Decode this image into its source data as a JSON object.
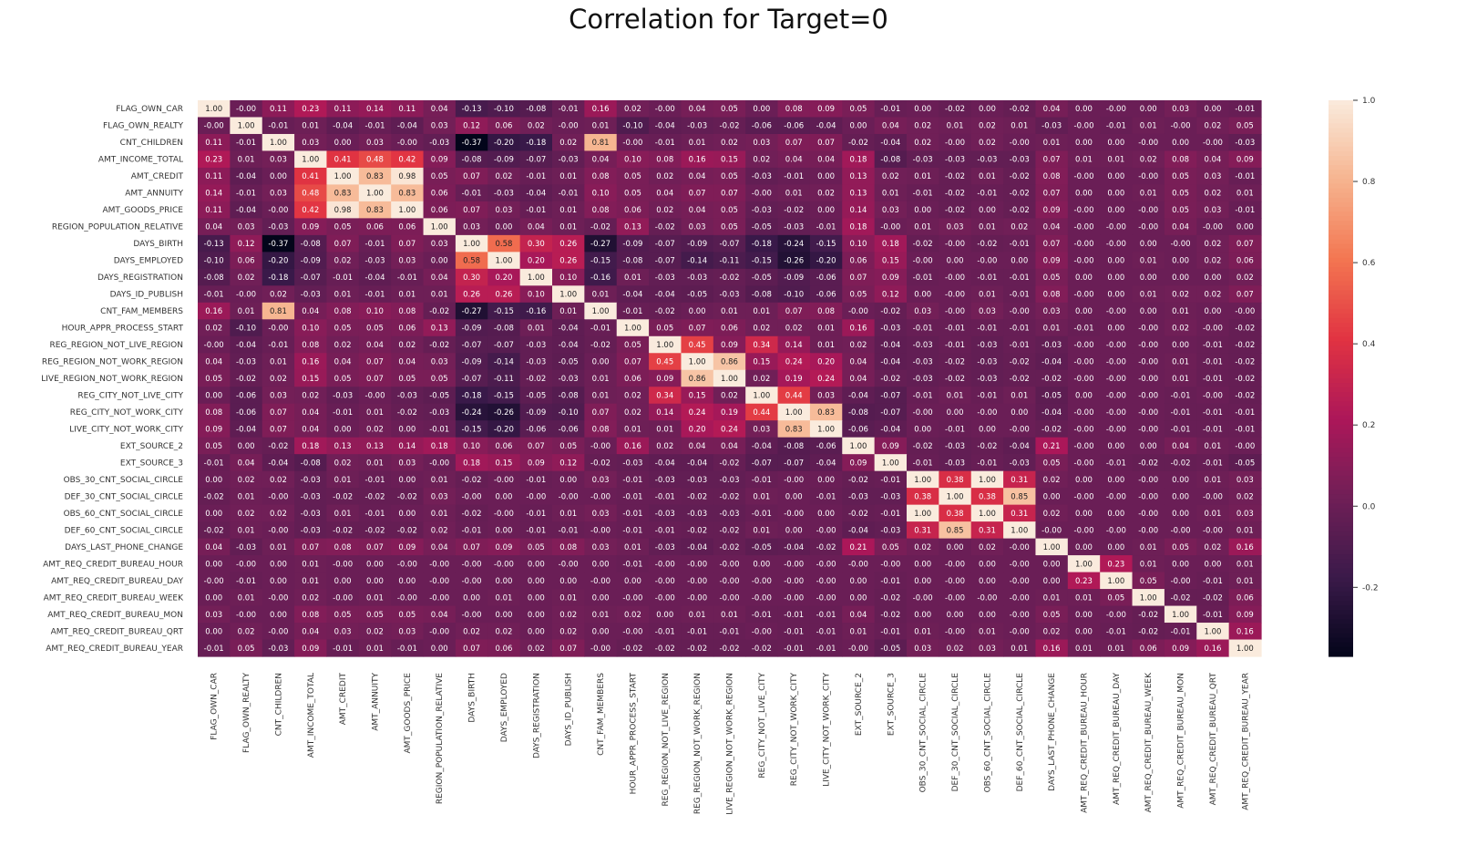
{
  "chart_data": {
    "type": "heatmap",
    "title": "Correlation for Target=0",
    "labels": [
      "FLAG_OWN_CAR",
      "FLAG_OWN_REALTY",
      "CNT_CHILDREN",
      "AMT_INCOME_TOTAL",
      "AMT_CREDIT",
      "AMT_ANNUITY",
      "AMT_GOODS_PRICE",
      "REGION_POPULATION_RELATIVE",
      "DAYS_BIRTH",
      "DAYS_EMPLOYED",
      "DAYS_REGISTRATION",
      "DAYS_ID_PUBLISH",
      "CNT_FAM_MEMBERS",
      "HOUR_APPR_PROCESS_START",
      "REG_REGION_NOT_LIVE_REGION",
      "REG_REGION_NOT_WORK_REGION",
      "LIVE_REGION_NOT_WORK_REGION",
      "REG_CITY_NOT_LIVE_CITY",
      "REG_CITY_NOT_WORK_CITY",
      "LIVE_CITY_NOT_WORK_CITY",
      "EXT_SOURCE_2",
      "EXT_SOURCE_3",
      "OBS_30_CNT_SOCIAL_CIRCLE",
      "DEF_30_CNT_SOCIAL_CIRCLE",
      "OBS_60_CNT_SOCIAL_CIRCLE",
      "DEF_60_CNT_SOCIAL_CIRCLE",
      "DAYS_LAST_PHONE_CHANGE",
      "AMT_REQ_CREDIT_BUREAU_HOUR",
      "AMT_REQ_CREDIT_BUREAU_DAY",
      "AMT_REQ_CREDIT_BUREAU_WEEK",
      "AMT_REQ_CREDIT_BUREAU_MON",
      "AMT_REQ_CREDIT_BUREAU_QRT",
      "AMT_REQ_CREDIT_BUREAU_YEAR"
    ],
    "matrix": [
      [
        "1.00",
        "-0.00",
        "0.11",
        "0.23",
        "0.11",
        "0.14",
        "0.11",
        "0.04",
        "-0.13",
        "-0.10",
        "-0.08",
        "-0.01",
        "0.16",
        "0.02",
        "-0.00",
        "0.04",
        "0.05",
        "0.00",
        "0.08",
        "0.09",
        "0.05",
        "-0.01",
        "0.00",
        "-0.02",
        "0.00",
        "-0.02",
        "0.04",
        "0.00",
        "-0.00",
        "0.00",
        "0.03",
        "0.00",
        "-0.01"
      ],
      [
        "-0.00",
        "1.00",
        "-0.01",
        "0.01",
        "-0.04",
        "-0.01",
        "-0.04",
        "0.03",
        "0.12",
        "0.06",
        "0.02",
        "-0.00",
        "0.01",
        "-0.10",
        "-0.04",
        "-0.03",
        "-0.02",
        "-0.06",
        "-0.06",
        "-0.04",
        "0.00",
        "0.04",
        "0.02",
        "0.01",
        "0.02",
        "0.01",
        "-0.03",
        "-0.00",
        "-0.01",
        "0.01",
        "-0.00",
        "0.02",
        "0.05"
      ],
      [
        "0.11",
        "-0.01",
        "1.00",
        "0.03",
        "0.00",
        "0.03",
        "-0.00",
        "-0.03",
        "-0.37",
        "-0.20",
        "-0.18",
        "0.02",
        "0.81",
        "-0.00",
        "-0.01",
        "0.01",
        "0.02",
        "0.03",
        "0.07",
        "0.07",
        "-0.02",
        "-0.04",
        "0.02",
        "-0.00",
        "0.02",
        "-0.00",
        "0.01",
        "0.00",
        "0.00",
        "-0.00",
        "0.00",
        "-0.00",
        "-0.03"
      ],
      [
        "0.23",
        "0.01",
        "0.03",
        "1.00",
        "0.41",
        "0.48",
        "0.42",
        "0.09",
        "-0.08",
        "-0.09",
        "-0.07",
        "-0.03",
        "0.04",
        "0.10",
        "0.08",
        "0.16",
        "0.15",
        "0.02",
        "0.04",
        "0.04",
        "0.18",
        "-0.08",
        "-0.03",
        "-0.03",
        "-0.03",
        "-0.03",
        "0.07",
        "0.01",
        "0.01",
        "0.02",
        "0.08",
        "0.04",
        "0.09"
      ],
      [
        "0.11",
        "-0.04",
        "0.00",
        "0.41",
        "1.00",
        "0.83",
        "0.98",
        "0.05",
        "0.07",
        "0.02",
        "-0.01",
        "0.01",
        "0.08",
        "0.05",
        "0.02",
        "0.04",
        "0.05",
        "-0.03",
        "-0.01",
        "0.00",
        "0.13",
        "0.02",
        "0.01",
        "-0.02",
        "0.01",
        "-0.02",
        "0.08",
        "-0.00",
        "0.00",
        "-0.00",
        "0.05",
        "0.03",
        "-0.01"
      ],
      [
        "0.14",
        "-0.01",
        "0.03",
        "0.48",
        "0.83",
        "1.00",
        "0.83",
        "0.06",
        "-0.01",
        "-0.03",
        "-0.04",
        "-0.01",
        "0.10",
        "0.05",
        "0.04",
        "0.07",
        "0.07",
        "-0.00",
        "0.01",
        "0.02",
        "0.13",
        "0.01",
        "-0.01",
        "-0.02",
        "-0.01",
        "-0.02",
        "0.07",
        "0.00",
        "0.00",
        "0.01",
        "0.05",
        "0.02",
        "0.01"
      ],
      [
        "0.11",
        "-0.04",
        "-0.00",
        "0.42",
        "0.98",
        "0.83",
        "1.00",
        "0.06",
        "0.07",
        "0.03",
        "-0.01",
        "0.01",
        "0.08",
        "0.06",
        "0.02",
        "0.04",
        "0.05",
        "-0.03",
        "-0.02",
        "0.00",
        "0.14",
        "0.03",
        "0.00",
        "-0.02",
        "0.00",
        "-0.02",
        "0.09",
        "-0.00",
        "0.00",
        "-0.00",
        "0.05",
        "0.03",
        "-0.01"
      ],
      [
        "0.04",
        "0.03",
        "-0.03",
        "0.09",
        "0.05",
        "0.06",
        "0.06",
        "1.00",
        "0.03",
        "0.00",
        "0.04",
        "0.01",
        "-0.02",
        "0.13",
        "-0.02",
        "0.03",
        "0.05",
        "-0.05",
        "-0.03",
        "-0.01",
        "0.18",
        "-0.00",
        "0.01",
        "0.03",
        "0.01",
        "0.02",
        "0.04",
        "-0.00",
        "-0.00",
        "-0.00",
        "0.04",
        "-0.00",
        "0.00"
      ],
      [
        "-0.13",
        "0.12",
        "-0.37",
        "-0.08",
        "0.07",
        "-0.01",
        "0.07",
        "0.03",
        "1.00",
        "0.58",
        "0.30",
        "0.26",
        "-0.27",
        "-0.09",
        "-0.07",
        "-0.09",
        "-0.07",
        "-0.18",
        "-0.24",
        "-0.15",
        "0.10",
        "0.18",
        "-0.02",
        "-0.00",
        "-0.02",
        "-0.01",
        "0.07",
        "-0.00",
        "-0.00",
        "0.00",
        "-0.00",
        "0.02",
        "0.07"
      ],
      [
        "-0.10",
        "0.06",
        "-0.20",
        "-0.09",
        "0.02",
        "-0.03",
        "0.03",
        "0.00",
        "0.58",
        "1.00",
        "0.20",
        "0.26",
        "-0.15",
        "-0.08",
        "-0.07",
        "-0.14",
        "-0.11",
        "-0.15",
        "-0.26",
        "-0.20",
        "0.06",
        "0.15",
        "-0.00",
        "0.00",
        "-0.00",
        "0.00",
        "0.09",
        "-0.00",
        "0.00",
        "0.01",
        "0.00",
        "0.02",
        "0.06"
      ],
      [
        "-0.08",
        "0.02",
        "-0.18",
        "-0.07",
        "-0.01",
        "-0.04",
        "-0.01",
        "0.04",
        "0.30",
        "0.20",
        "1.00",
        "0.10",
        "-0.16",
        "0.01",
        "-0.03",
        "-0.03",
        "-0.02",
        "-0.05",
        "-0.09",
        "-0.06",
        "0.07",
        "0.09",
        "-0.01",
        "-0.00",
        "-0.01",
        "-0.01",
        "0.05",
        "0.00",
        "0.00",
        "0.00",
        "0.00",
        "0.00",
        "0.02"
      ],
      [
        "-0.01",
        "-0.00",
        "0.02",
        "-0.03",
        "0.01",
        "-0.01",
        "0.01",
        "0.01",
        "0.26",
        "0.26",
        "0.10",
        "1.00",
        "0.01",
        "-0.04",
        "-0.04",
        "-0.05",
        "-0.03",
        "-0.08",
        "-0.10",
        "-0.06",
        "0.05",
        "0.12",
        "0.00",
        "-0.00",
        "0.01",
        "-0.01",
        "0.08",
        "-0.00",
        "0.00",
        "0.01",
        "0.02",
        "0.02",
        "0.07"
      ],
      [
        "0.16",
        "0.01",
        "0.81",
        "0.04",
        "0.08",
        "0.10",
        "0.08",
        "-0.02",
        "-0.27",
        "-0.15",
        "-0.16",
        "0.01",
        "1.00",
        "-0.01",
        "-0.02",
        "0.00",
        "0.01",
        "0.01",
        "0.07",
        "0.08",
        "-0.00",
        "-0.02",
        "0.03",
        "-0.00",
        "0.03",
        "-0.00",
        "0.03",
        "0.00",
        "-0.00",
        "0.00",
        "0.01",
        "0.00",
        "-0.00"
      ],
      [
        "0.02",
        "-0.10",
        "-0.00",
        "0.10",
        "0.05",
        "0.05",
        "0.06",
        "0.13",
        "-0.09",
        "-0.08",
        "0.01",
        "-0.04",
        "-0.01",
        "1.00",
        "0.05",
        "0.07",
        "0.06",
        "0.02",
        "0.02",
        "0.01",
        "0.16",
        "-0.03",
        "-0.01",
        "-0.01",
        "-0.01",
        "-0.01",
        "0.01",
        "-0.01",
        "0.00",
        "-0.00",
        "0.02",
        "-0.00",
        "-0.02"
      ],
      [
        "-0.00",
        "-0.04",
        "-0.01",
        "0.08",
        "0.02",
        "0.04",
        "0.02",
        "-0.02",
        "-0.07",
        "-0.07",
        "-0.03",
        "-0.04",
        "-0.02",
        "0.05",
        "1.00",
        "0.45",
        "0.09",
        "0.34",
        "0.14",
        "0.01",
        "0.02",
        "-0.04",
        "-0.03",
        "-0.01",
        "-0.03",
        "-0.01",
        "-0.03",
        "-0.00",
        "-0.00",
        "-0.00",
        "0.00",
        "-0.01",
        "-0.02"
      ],
      [
        "0.04",
        "-0.03",
        "0.01",
        "0.16",
        "0.04",
        "0.07",
        "0.04",
        "0.03",
        "-0.09",
        "-0.14",
        "-0.03",
        "-0.05",
        "0.00",
        "0.07",
        "0.45",
        "1.00",
        "0.86",
        "0.15",
        "0.24",
        "0.20",
        "0.04",
        "-0.04",
        "-0.03",
        "-0.02",
        "-0.03",
        "-0.02",
        "-0.04",
        "-0.00",
        "-0.00",
        "-0.00",
        "0.01",
        "-0.01",
        "-0.02"
      ],
      [
        "0.05",
        "-0.02",
        "0.02",
        "0.15",
        "0.05",
        "0.07",
        "0.05",
        "0.05",
        "-0.07",
        "-0.11",
        "-0.02",
        "-0.03",
        "0.01",
        "0.06",
        "0.09",
        "0.86",
        "1.00",
        "0.02",
        "0.19",
        "0.24",
        "0.04",
        "-0.02",
        "-0.03",
        "-0.02",
        "-0.03",
        "-0.02",
        "-0.02",
        "-0.00",
        "-0.00",
        "-0.00",
        "0.01",
        "-0.01",
        "-0.02"
      ],
      [
        "0.00",
        "-0.06",
        "0.03",
        "0.02",
        "-0.03",
        "-0.00",
        "-0.03",
        "-0.05",
        "-0.18",
        "-0.15",
        "-0.05",
        "-0.08",
        "0.01",
        "0.02",
        "0.34",
        "0.15",
        "0.02",
        "1.00",
        "0.44",
        "0.03",
        "-0.04",
        "-0.07",
        "-0.01",
        "0.01",
        "-0.01",
        "0.01",
        "-0.05",
        "0.00",
        "-0.00",
        "-0.00",
        "-0.01",
        "-0.00",
        "-0.02"
      ],
      [
        "0.08",
        "-0.06",
        "0.07",
        "0.04",
        "-0.01",
        "0.01",
        "-0.02",
        "-0.03",
        "-0.24",
        "-0.26",
        "-0.09",
        "-0.10",
        "0.07",
        "0.02",
        "0.14",
        "0.24",
        "0.19",
        "0.44",
        "1.00",
        "0.83",
        "-0.08",
        "-0.07",
        "-0.00",
        "0.00",
        "-0.00",
        "0.00",
        "-0.04",
        "-0.00",
        "-0.00",
        "-0.00",
        "-0.01",
        "-0.01",
        "-0.01"
      ],
      [
        "0.09",
        "-0.04",
        "0.07",
        "0.04",
        "0.00",
        "0.02",
        "0.00",
        "-0.01",
        "-0.15",
        "-0.20",
        "-0.06",
        "-0.06",
        "0.08",
        "0.01",
        "0.01",
        "0.20",
        "0.24",
        "0.03",
        "0.83",
        "1.00",
        "-0.06",
        "-0.04",
        "0.00",
        "-0.01",
        "0.00",
        "-0.00",
        "-0.02",
        "-0.00",
        "-0.00",
        "-0.00",
        "-0.01",
        "-0.01",
        "-0.01"
      ],
      [
        "0.05",
        "0.00",
        "-0.02",
        "0.18",
        "0.13",
        "0.13",
        "0.14",
        "0.18",
        "0.10",
        "0.06",
        "0.07",
        "0.05",
        "-0.00",
        "0.16",
        "0.02",
        "0.04",
        "0.04",
        "-0.04",
        "-0.08",
        "-0.06",
        "1.00",
        "0.09",
        "-0.02",
        "-0.03",
        "-0.02",
        "-0.04",
        "0.21",
        "-0.00",
        "0.00",
        "0.00",
        "0.04",
        "0.01",
        "-0.00"
      ],
      [
        "-0.01",
        "0.04",
        "-0.04",
        "-0.08",
        "0.02",
        "0.01",
        "0.03",
        "-0.00",
        "0.18",
        "0.15",
        "0.09",
        "0.12",
        "-0.02",
        "-0.03",
        "-0.04",
        "-0.04",
        "-0.02",
        "-0.07",
        "-0.07",
        "-0.04",
        "0.09",
        "1.00",
        "-0.01",
        "-0.03",
        "-0.01",
        "-0.03",
        "0.05",
        "-0.00",
        "-0.01",
        "-0.02",
        "-0.02",
        "-0.01",
        "-0.05"
      ],
      [
        "0.00",
        "0.02",
        "0.02",
        "-0.03",
        "0.01",
        "-0.01",
        "0.00",
        "0.01",
        "-0.02",
        "-0.00",
        "-0.01",
        "0.00",
        "0.03",
        "-0.01",
        "-0.03",
        "-0.03",
        "-0.03",
        "-0.01",
        "-0.00",
        "0.00",
        "-0.02",
        "-0.01",
        "1.00",
        "0.38",
        "1.00",
        "0.31",
        "0.02",
        "0.00",
        "0.00",
        "-0.00",
        "0.00",
        "0.01",
        "0.03"
      ],
      [
        "-0.02",
        "0.01",
        "-0.00",
        "-0.03",
        "-0.02",
        "-0.02",
        "-0.02",
        "0.03",
        "-0.00",
        "0.00",
        "-0.00",
        "-0.00",
        "-0.00",
        "-0.01",
        "-0.01",
        "-0.02",
        "-0.02",
        "0.01",
        "0.00",
        "-0.01",
        "-0.03",
        "-0.03",
        "0.38",
        "1.00",
        "0.38",
        "0.85",
        "0.00",
        "-0.00",
        "-0.00",
        "-0.00",
        "0.00",
        "-0.00",
        "0.02"
      ],
      [
        "0.00",
        "0.02",
        "0.02",
        "-0.03",
        "0.01",
        "-0.01",
        "0.00",
        "0.01",
        "-0.02",
        "-0.00",
        "-0.01",
        "0.01",
        "0.03",
        "-0.01",
        "-0.03",
        "-0.03",
        "-0.03",
        "-0.01",
        "-0.00",
        "0.00",
        "-0.02",
        "-0.01",
        "1.00",
        "0.38",
        "1.00",
        "0.31",
        "0.02",
        "0.00",
        "0.00",
        "-0.00",
        "0.00",
        "0.01",
        "0.03"
      ],
      [
        "-0.02",
        "0.01",
        "-0.00",
        "-0.03",
        "-0.02",
        "-0.02",
        "-0.02",
        "0.02",
        "-0.01",
        "0.00",
        "-0.01",
        "-0.01",
        "-0.00",
        "-0.01",
        "-0.01",
        "-0.02",
        "-0.02",
        "0.01",
        "0.00",
        "-0.00",
        "-0.04",
        "-0.03",
        "0.31",
        "0.85",
        "0.31",
        "1.00",
        "-0.00",
        "-0.00",
        "-0.00",
        "-0.00",
        "-0.00",
        "-0.00",
        "0.01"
      ],
      [
        "0.04",
        "-0.03",
        "0.01",
        "0.07",
        "0.08",
        "0.07",
        "0.09",
        "0.04",
        "0.07",
        "0.09",
        "0.05",
        "0.08",
        "0.03",
        "0.01",
        "-0.03",
        "-0.04",
        "-0.02",
        "-0.05",
        "-0.04",
        "-0.02",
        "0.21",
        "0.05",
        "0.02",
        "0.00",
        "0.02",
        "-0.00",
        "1.00",
        "0.00",
        "0.00",
        "0.01",
        "0.05",
        "0.02",
        "0.16"
      ],
      [
        "0.00",
        "-0.00",
        "0.00",
        "0.01",
        "-0.00",
        "0.00",
        "-0.00",
        "-0.00",
        "-0.00",
        "-0.00",
        "0.00",
        "-0.00",
        "0.00",
        "-0.01",
        "-0.00",
        "-0.00",
        "-0.00",
        "0.00",
        "-0.00",
        "-0.00",
        "-0.00",
        "-0.00",
        "0.00",
        "-0.00",
        "0.00",
        "-0.00",
        "0.00",
        "1.00",
        "0.23",
        "0.01",
        "0.00",
        "0.00",
        "0.01"
      ],
      [
        "-0.00",
        "-0.01",
        "0.00",
        "0.01",
        "0.00",
        "0.00",
        "0.00",
        "-0.00",
        "-0.00",
        "0.00",
        "0.00",
        "0.00",
        "-0.00",
        "0.00",
        "-0.00",
        "-0.00",
        "-0.00",
        "-0.00",
        "-0.00",
        "-0.00",
        "0.00",
        "-0.01",
        "0.00",
        "-0.00",
        "0.00",
        "-0.00",
        "0.00",
        "0.23",
        "1.00",
        "0.05",
        "-0.00",
        "-0.01",
        "0.01"
      ],
      [
        "0.00",
        "0.01",
        "-0.00",
        "0.02",
        "-0.00",
        "0.01",
        "-0.00",
        "-0.00",
        "0.00",
        "0.01",
        "0.00",
        "0.01",
        "0.00",
        "-0.00",
        "-0.00",
        "-0.00",
        "-0.00",
        "-0.00",
        "-0.00",
        "-0.00",
        "0.00",
        "-0.02",
        "-0.00",
        "-0.00",
        "-0.00",
        "-0.00",
        "0.01",
        "0.01",
        "0.05",
        "1.00",
        "-0.02",
        "-0.02",
        "0.06"
      ],
      [
        "0.03",
        "-0.00",
        "0.00",
        "0.08",
        "0.05",
        "0.05",
        "0.05",
        "0.04",
        "-0.00",
        "0.00",
        "0.00",
        "0.02",
        "0.01",
        "0.02",
        "0.00",
        "0.01",
        "0.01",
        "-0.01",
        "-0.01",
        "-0.01",
        "0.04",
        "-0.02",
        "0.00",
        "0.00",
        "0.00",
        "-0.00",
        "0.05",
        "0.00",
        "-0.00",
        "-0.02",
        "1.00",
        "-0.01",
        "0.09"
      ],
      [
        "0.00",
        "0.02",
        "-0.00",
        "0.04",
        "0.03",
        "0.02",
        "0.03",
        "-0.00",
        "0.02",
        "0.02",
        "0.00",
        "0.02",
        "0.00",
        "-0.00",
        "-0.01",
        "-0.01",
        "-0.01",
        "-0.00",
        "-0.01",
        "-0.01",
        "0.01",
        "-0.01",
        "0.01",
        "-0.00",
        "0.01",
        "-0.00",
        "0.02",
        "0.00",
        "-0.01",
        "-0.02",
        "-0.01",
        "1.00",
        "0.16"
      ],
      [
        "-0.01",
        "0.05",
        "-0.03",
        "0.09",
        "-0.01",
        "0.01",
        "-0.01",
        "0.00",
        "0.07",
        "0.06",
        "0.02",
        "0.07",
        "-0.00",
        "-0.02",
        "-0.02",
        "-0.02",
        "-0.02",
        "-0.02",
        "-0.01",
        "-0.01",
        "-0.00",
        "-0.05",
        "0.03",
        "0.02",
        "0.03",
        "0.01",
        "0.16",
        "0.01",
        "0.01",
        "0.06",
        "0.09",
        "0.16",
        "1.00"
      ]
    ],
    "colorbar": {
      "vmin": -0.37,
      "vmax": 1.0,
      "ticks": [
        "1.0",
        "0.8",
        "0.6",
        "0.4",
        "0.2",
        "0.0",
        "-0.2"
      ],
      "colormap": "rocket",
      "colors": [
        "#03051a",
        "#3b1a4a",
        "#701f57",
        "#ad1759",
        "#e13342",
        "#f37651",
        "#f6b48f",
        "#faebdd"
      ]
    }
  }
}
